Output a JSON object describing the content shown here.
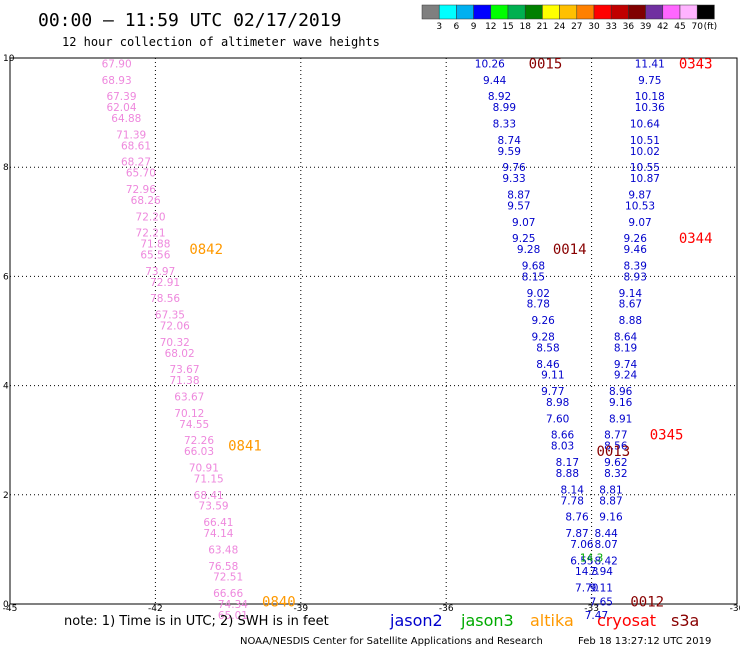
{
  "header": {
    "title": "00:00 — 11:59 UTC 02/17/2019",
    "subtitle": "12 hour collection of altimeter wave heights"
  },
  "colorbar": {
    "labels": [
      "3",
      "6",
      "9",
      "12",
      "15",
      "18",
      "21",
      "24",
      "27",
      "30",
      "33",
      "36",
      "39",
      "42",
      "45",
      "70"
    ],
    "unit": "(ft)",
    "colors": [
      "#7f7f7f",
      "#00ffff",
      "#00b0f0",
      "#0000ff",
      "#00ff00",
      "#00b050",
      "#008000",
      "#ffff00",
      "#ffc000",
      "#ff8000",
      "#ff0000",
      "#c00000",
      "#800000",
      "#7030a0",
      "#ff66ff",
      "#ffb3ff",
      "#000000"
    ]
  },
  "footer": {
    "note": "note:  1) Time is in UTC;  2) SWH is in feet",
    "credit": "NOAA/NESDIS Center for Satellite Applications and Research",
    "timestamp": "Feb 18 13:27:12 UTC 2019"
  },
  "legend": [
    {
      "name": "jason2",
      "color": "#0000cc"
    },
    {
      "name": "jason3",
      "color": "#00aa00"
    },
    {
      "name": "altika",
      "color": "#ff9900"
    },
    {
      "name": "cryosat",
      "color": "#ff0000"
    },
    {
      "name": "s3a",
      "color": "#880000"
    }
  ],
  "chart_data": {
    "type": "scatter",
    "xlim": [
      -45,
      -30
    ],
    "ylim": [
      0,
      10
    ],
    "xticks": [
      "-45",
      "-42",
      "-39",
      "-36",
      "-33",
      "-30"
    ],
    "yticks": [
      "0",
      "2",
      "4",
      "6",
      "8",
      "10"
    ],
    "grid": true,
    "track_time_labels": [
      {
        "text": "0015",
        "x": -34.3,
        "y": 9.9,
        "color": "#880000"
      },
      {
        "text": "0343",
        "x": -31.2,
        "y": 9.9,
        "color": "#ff0000"
      },
      {
        "text": "0842",
        "x": -41.3,
        "y": 6.5,
        "color": "#ff9900"
      },
      {
        "text": "0014",
        "x": -33.8,
        "y": 6.5,
        "color": "#880000"
      },
      {
        "text": "0344",
        "x": -31.2,
        "y": 6.7,
        "color": "#ff0000"
      },
      {
        "text": "0841",
        "x": -40.5,
        "y": 2.9,
        "color": "#ff9900"
      },
      {
        "text": "0345",
        "x": -31.8,
        "y": 3.1,
        "color": "#ff0000"
      },
      {
        "text": "0013",
        "x": -32.9,
        "y": 2.8,
        "color": "#880000"
      },
      {
        "text": "0840",
        "x": -39.8,
        "y": 0.05,
        "color": "#ff9900"
      },
      {
        "text": "0012",
        "x": -32.2,
        "y": 0.05,
        "color": "#880000"
      }
    ],
    "series": [
      {
        "name": "altika",
        "color": "#ee88dd",
        "points": [
          {
            "x": -42.8,
            "y": 9.9,
            "v": "67.90"
          },
          {
            "x": -42.8,
            "y": 9.6,
            "v": "68.93"
          },
          {
            "x": -42.7,
            "y": 9.3,
            "v": "67.39"
          },
          {
            "x": -42.7,
            "y": 9.1,
            "v": "62.04"
          },
          {
            "x": -42.6,
            "y": 8.9,
            "v": "64.88"
          },
          {
            "x": -42.5,
            "y": 8.6,
            "v": "71.39"
          },
          {
            "x": -42.4,
            "y": 8.4,
            "v": "68.61"
          },
          {
            "x": -42.4,
            "y": 8.1,
            "v": "68.27"
          },
          {
            "x": -42.3,
            "y": 7.9,
            "v": "65.70"
          },
          {
            "x": -42.3,
            "y": 7.6,
            "v": "72.96"
          },
          {
            "x": -42.2,
            "y": 7.4,
            "v": "68.26"
          },
          {
            "x": -42.1,
            "y": 7.1,
            "v": "72.20"
          },
          {
            "x": -42.1,
            "y": 6.8,
            "v": "72.21"
          },
          {
            "x": -42.0,
            "y": 6.6,
            "v": "71.88"
          },
          {
            "x": -42.0,
            "y": 6.4,
            "v": "65.56"
          },
          {
            "x": -41.9,
            "y": 6.1,
            "v": "73.97"
          },
          {
            "x": -41.8,
            "y": 5.9,
            "v": "72.91"
          },
          {
            "x": -41.8,
            "y": 5.6,
            "v": "78.56"
          },
          {
            "x": -41.7,
            "y": 5.3,
            "v": "67.35"
          },
          {
            "x": -41.6,
            "y": 5.1,
            "v": "72.06"
          },
          {
            "x": -41.6,
            "y": 4.8,
            "v": "70.32"
          },
          {
            "x": -41.5,
            "y": 4.6,
            "v": "68.02"
          },
          {
            "x": -41.4,
            "y": 4.3,
            "v": "73.67"
          },
          {
            "x": -41.4,
            "y": 4.1,
            "v": "71.38"
          },
          {
            "x": -41.3,
            "y": 3.8,
            "v": "63.67"
          },
          {
            "x": -41.3,
            "y": 3.5,
            "v": "70.12"
          },
          {
            "x": -41.2,
            "y": 3.3,
            "v": "74.55"
          },
          {
            "x": -41.1,
            "y": 3.0,
            "v": "72.26"
          },
          {
            "x": -41.1,
            "y": 2.8,
            "v": "66.03"
          },
          {
            "x": -41.0,
            "y": 2.5,
            "v": "70.91"
          },
          {
            "x": -40.9,
            "y": 2.3,
            "v": "71.15"
          },
          {
            "x": -40.9,
            "y": 2.0,
            "v": "68.41"
          },
          {
            "x": -40.8,
            "y": 1.8,
            "v": "73.59"
          },
          {
            "x": -40.7,
            "y": 1.5,
            "v": "66.41"
          },
          {
            "x": -40.7,
            "y": 1.3,
            "v": "74.14"
          },
          {
            "x": -40.6,
            "y": 1.0,
            "v": "63.48"
          },
          {
            "x": -40.6,
            "y": 0.7,
            "v": "76.58"
          },
          {
            "x": -40.5,
            "y": 0.5,
            "v": "72.51"
          },
          {
            "x": -40.5,
            "y": 0.2,
            "v": "66.66"
          },
          {
            "x": -40.4,
            "y": 0.0,
            "v": "74.34"
          },
          {
            "x": -40.4,
            "y": -0.2,
            "v": "65.01"
          }
        ]
      },
      {
        "name": "s3a",
        "color": "#0000cc",
        "points": [
          {
            "x": -35.1,
            "y": 9.9,
            "v": "10.26"
          },
          {
            "x": -35.0,
            "y": 9.6,
            "v": "9.44"
          },
          {
            "x": -34.9,
            "y": 9.3,
            "v": "8.92"
          },
          {
            "x": -34.8,
            "y": 9.1,
            "v": "8.99"
          },
          {
            "x": -34.8,
            "y": 8.8,
            "v": "8.33"
          },
          {
            "x": -34.7,
            "y": 8.5,
            "v": "8.74"
          },
          {
            "x": -34.7,
            "y": 8.3,
            "v": "9.59"
          },
          {
            "x": -34.6,
            "y": 8.0,
            "v": "9.76"
          },
          {
            "x": -34.6,
            "y": 7.8,
            "v": "9.33"
          },
          {
            "x": -34.5,
            "y": 7.5,
            "v": "8.87"
          },
          {
            "x": -34.5,
            "y": 7.3,
            "v": "9.57"
          },
          {
            "x": -34.4,
            "y": 7.0,
            "v": "9.07"
          },
          {
            "x": -34.4,
            "y": 6.7,
            "v": "9.25"
          },
          {
            "x": -34.3,
            "y": 6.5,
            "v": "9.28"
          },
          {
            "x": -34.2,
            "y": 6.2,
            "v": "9.68"
          },
          {
            "x": -34.2,
            "y": 6.0,
            "v": "8.15"
          },
          {
            "x": -34.1,
            "y": 5.7,
            "v": "9.02"
          },
          {
            "x": -34.1,
            "y": 5.5,
            "v": "8.78"
          },
          {
            "x": -34.0,
            "y": 5.2,
            "v": "9.26"
          },
          {
            "x": -34.0,
            "y": 4.9,
            "v": "9.28"
          },
          {
            "x": -33.9,
            "y": 4.7,
            "v": "8.58"
          },
          {
            "x": -33.9,
            "y": 4.4,
            "v": "8.46"
          },
          {
            "x": -33.8,
            "y": 4.2,
            "v": "9.11"
          },
          {
            "x": -33.8,
            "y": 3.9,
            "v": "9.77"
          },
          {
            "x": -33.7,
            "y": 3.7,
            "v": "8.98"
          },
          {
            "x": -33.7,
            "y": 3.4,
            "v": "7.60"
          },
          {
            "x": -33.6,
            "y": 3.1,
            "v": "8.66"
          },
          {
            "x": -33.6,
            "y": 2.9,
            "v": "8.03"
          },
          {
            "x": -33.5,
            "y": 2.6,
            "v": "8.17"
          },
          {
            "x": -33.5,
            "y": 2.4,
            "v": "8.88"
          },
          {
            "x": -33.4,
            "y": 2.1,
            "v": "8.14"
          },
          {
            "x": -33.4,
            "y": 1.9,
            "v": "7.78"
          },
          {
            "x": -33.3,
            "y": 1.6,
            "v": "8.76"
          },
          {
            "x": -33.3,
            "y": 1.3,
            "v": "7.87"
          },
          {
            "x": -33.2,
            "y": 1.1,
            "v": "7.06"
          },
          {
            "x": -33.2,
            "y": 0.8,
            "v": "6.55"
          },
          {
            "x": -33.1,
            "y": 0.6,
            "v": "14.3"
          },
          {
            "x": -33.1,
            "y": 0.3,
            "v": "7.70"
          }
        ]
      },
      {
        "name": "cryosat",
        "color": "#0000cc",
        "points": [
          {
            "x": -31.8,
            "y": 9.9,
            "v": "11.41"
          },
          {
            "x": -31.8,
            "y": 9.6,
            "v": "9.75"
          },
          {
            "x": -31.8,
            "y": 9.3,
            "v": "10.18"
          },
          {
            "x": -31.8,
            "y": 9.1,
            "v": "10.36"
          },
          {
            "x": -31.9,
            "y": 8.8,
            "v": "10.64"
          },
          {
            "x": -31.9,
            "y": 8.5,
            "v": "10.51"
          },
          {
            "x": -31.9,
            "y": 8.3,
            "v": "10.02"
          },
          {
            "x": -31.9,
            "y": 8.0,
            "v": "10.55"
          },
          {
            "x": -31.9,
            "y": 7.8,
            "v": "10.87"
          },
          {
            "x": -32.0,
            "y": 7.5,
            "v": "9.87"
          },
          {
            "x": -32.0,
            "y": 7.3,
            "v": "10.53"
          },
          {
            "x": -32.0,
            "y": 7.0,
            "v": "9.07"
          },
          {
            "x": -32.1,
            "y": 6.7,
            "v": "9.26"
          },
          {
            "x": -32.1,
            "y": 6.5,
            "v": "9.46"
          },
          {
            "x": -32.1,
            "y": 6.2,
            "v": "8.39"
          },
          {
            "x": -32.1,
            "y": 6.0,
            "v": "8.93"
          },
          {
            "x": -32.2,
            "y": 5.7,
            "v": "9.14"
          },
          {
            "x": -32.2,
            "y": 5.5,
            "v": "8.67"
          },
          {
            "x": -32.2,
            "y": 5.2,
            "v": "8.88"
          },
          {
            "x": -32.3,
            "y": 4.9,
            "v": "8.64"
          },
          {
            "x": -32.3,
            "y": 4.7,
            "v": "8.19"
          },
          {
            "x": -32.3,
            "y": 4.4,
            "v": "9.74"
          },
          {
            "x": -32.3,
            "y": 4.2,
            "v": "9.24"
          },
          {
            "x": -32.4,
            "y": 3.9,
            "v": "8.96"
          },
          {
            "x": -32.4,
            "y": 3.7,
            "v": "9.16"
          },
          {
            "x": -32.4,
            "y": 3.4,
            "v": "8.91"
          },
          {
            "x": -32.5,
            "y": 3.1,
            "v": "8.77"
          },
          {
            "x": -32.5,
            "y": 2.9,
            "v": "8.56"
          },
          {
            "x": -32.5,
            "y": 2.6,
            "v": "9.62"
          },
          {
            "x": -32.5,
            "y": 2.4,
            "v": "8.32"
          },
          {
            "x": -32.6,
            "y": 2.1,
            "v": "8.81"
          },
          {
            "x": -32.6,
            "y": 1.9,
            "v": "8.87"
          },
          {
            "x": -32.6,
            "y": 1.6,
            "v": "9.16"
          },
          {
            "x": -32.7,
            "y": 1.3,
            "v": "8.44"
          },
          {
            "x": -32.7,
            "y": 1.1,
            "v": "8.07"
          },
          {
            "x": -32.7,
            "y": 0.8,
            "v": "8.42"
          },
          {
            "x": -32.8,
            "y": 0.6,
            "v": "7.94"
          },
          {
            "x": -32.8,
            "y": 0.3,
            "v": "9.11"
          },
          {
            "x": -32.8,
            "y": 0.05,
            "v": "7.65"
          },
          {
            "x": -32.9,
            "y": -0.2,
            "v": "7.47"
          }
        ]
      },
      {
        "name": "jason3",
        "color": "#00aa00",
        "points": [
          {
            "x": -33.0,
            "y": 0.85,
            "v": "14.3"
          }
        ]
      }
    ]
  }
}
